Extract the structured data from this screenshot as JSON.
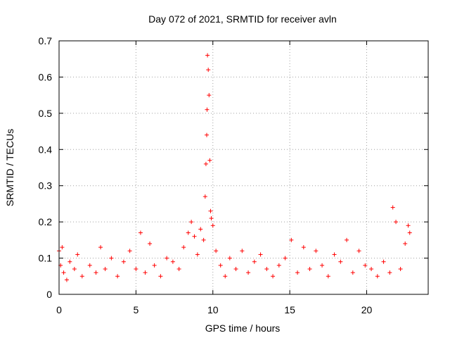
{
  "chart_data": {
    "type": "scatter",
    "title": "Day 072 of 2021, SRMTID for receiver avln",
    "xlabel": "GPS time / hours",
    "ylabel": "SRMTID / TECUs",
    "xlim": [
      0,
      24
    ],
    "ylim": [
      0,
      0.7
    ],
    "x_ticks": [
      "0",
      "5",
      "10",
      "15",
      "20"
    ],
    "y_ticks": [
      "0",
      "0.1",
      "0.2",
      "0.3",
      "0.4",
      "0.5",
      "0.6",
      "0.7"
    ],
    "grid": true,
    "marker": "plus",
    "series": [
      {
        "name": "SRMTID",
        "color": "#ff0000",
        "x": [
          0.0,
          0.1,
          0.2,
          0.3,
          0.5,
          0.7,
          1.0,
          1.2,
          1.5,
          2.0,
          2.4,
          2.7,
          3.0,
          3.4,
          3.8,
          4.2,
          4.6,
          5.0,
          5.3,
          5.6,
          5.9,
          6.2,
          6.6,
          7.0,
          7.4,
          7.8,
          8.1,
          8.4,
          8.6,
          8.8,
          9.0,
          9.2,
          9.4,
          9.5,
          9.55,
          9.6,
          9.62,
          9.65,
          9.7,
          9.75,
          9.8,
          9.85,
          9.9,
          10.0,
          10.2,
          10.5,
          10.8,
          11.1,
          11.5,
          11.9,
          12.3,
          12.7,
          13.1,
          13.5,
          13.9,
          14.3,
          14.7,
          15.1,
          15.5,
          15.9,
          16.3,
          16.7,
          17.1,
          17.5,
          17.9,
          18.3,
          18.7,
          19.1,
          19.5,
          19.9,
          20.3,
          20.7,
          21.1,
          21.5,
          21.7,
          21.9,
          22.2,
          22.5,
          22.7,
          22.8
        ],
        "y": [
          0.12,
          0.08,
          0.13,
          0.06,
          0.04,
          0.09,
          0.07,
          0.11,
          0.05,
          0.08,
          0.06,
          0.13,
          0.07,
          0.1,
          0.05,
          0.09,
          0.12,
          0.07,
          0.17,
          0.06,
          0.14,
          0.08,
          0.05,
          0.1,
          0.09,
          0.07,
          0.13,
          0.17,
          0.2,
          0.16,
          0.11,
          0.18,
          0.15,
          0.27,
          0.36,
          0.44,
          0.51,
          0.66,
          0.62,
          0.55,
          0.37,
          0.23,
          0.21,
          0.19,
          0.12,
          0.08,
          0.05,
          0.1,
          0.07,
          0.12,
          0.06,
          0.09,
          0.11,
          0.07,
          0.05,
          0.08,
          0.1,
          0.15,
          0.06,
          0.13,
          0.07,
          0.12,
          0.08,
          0.05,
          0.11,
          0.09,
          0.15,
          0.06,
          0.12,
          0.08,
          0.07,
          0.05,
          0.09,
          0.06,
          0.24,
          0.2,
          0.07,
          0.14,
          0.19,
          0.17
        ]
      }
    ]
  }
}
